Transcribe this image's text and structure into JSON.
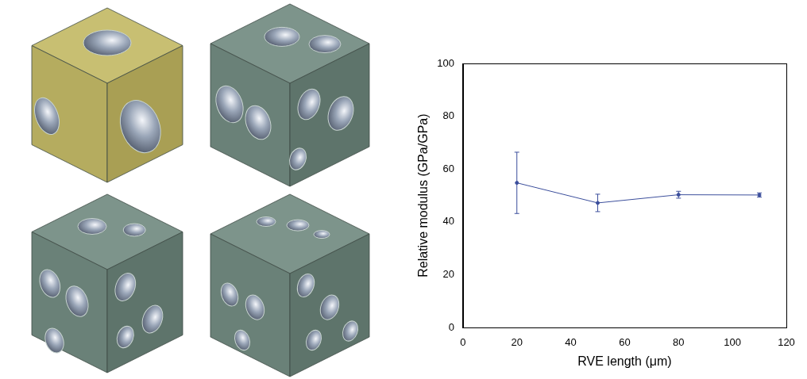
{
  "chart_data": {
    "type": "line",
    "x_label": "RVE length (μm)",
    "y_label": "Relative modulus (GPa/GPa)",
    "x": [
      20,
      50,
      80,
      110
    ],
    "series": [
      {
        "color": "#3c4f9c",
        "values": [
          54.8,
          47.2,
          50.3,
          50.2
        ],
        "errors": [
          11.6,
          3.3,
          1.3,
          0.8
        ],
        "marker": "point"
      }
    ],
    "xlim": [
      0,
      120
    ],
    "xticks": [
      0,
      20,
      40,
      60,
      80,
      100,
      120
    ],
    "ylim": [
      0,
      100
    ],
    "yticks": [
      0,
      20,
      40,
      60,
      80,
      100
    ],
    "grid": false
  }
}
